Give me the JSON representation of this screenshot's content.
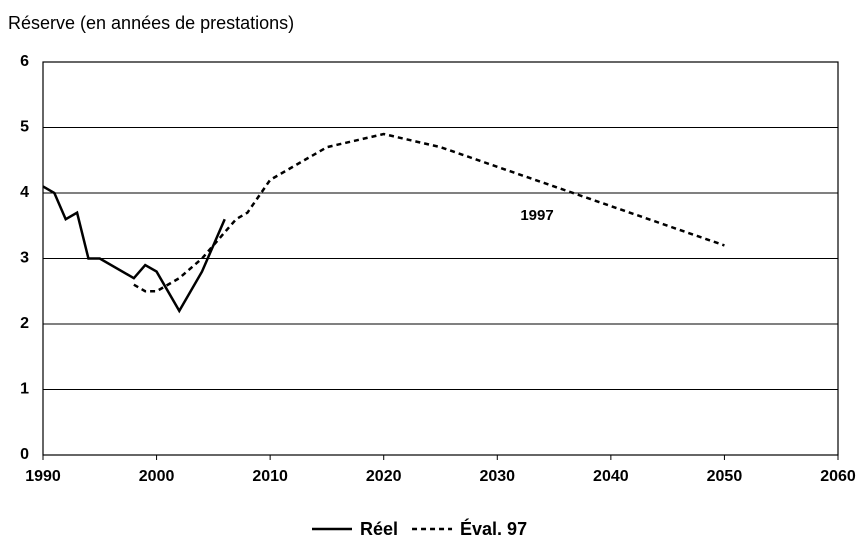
{
  "chart_data": {
    "type": "line",
    "title": "Réserve (en années de prestations)",
    "annotation": "1997",
    "xlim": [
      1990,
      2060
    ],
    "xticks": [
      1990,
      2000,
      2010,
      2020,
      2030,
      2040,
      2050,
      2060
    ],
    "ylim": [
      0,
      6
    ],
    "yticks": [
      0,
      1,
      2,
      3,
      4,
      5,
      6
    ],
    "grid": true,
    "legend": "bottom",
    "series": [
      {
        "name": "Réel",
        "color": "#000000",
        "dash": "solid",
        "x": [
          1990,
          1991,
          1992,
          1993,
          1994,
          1995,
          1998,
          1999,
          2000,
          2002,
          2004,
          2006
        ],
        "values": [
          4.1,
          4.0,
          3.6,
          3.7,
          3.0,
          3.0,
          2.7,
          2.9,
          2.8,
          2.2,
          2.8,
          3.6
        ]
      },
      {
        "name": "Éval. 97",
        "color": "#000000",
        "dash": "dashed",
        "x": [
          1998,
          1999,
          2000,
          2002,
          2004,
          2006,
          2007,
          2008,
          2010,
          2015,
          2020,
          2025,
          2030,
          2035,
          2040,
          2045,
          2050
        ],
        "values": [
          2.6,
          2.5,
          2.5,
          2.7,
          3.0,
          3.4,
          3.6,
          3.7,
          4.2,
          4.7,
          4.9,
          4.7,
          4.4,
          4.1,
          3.8,
          3.5,
          3.2
        ]
      }
    ]
  }
}
